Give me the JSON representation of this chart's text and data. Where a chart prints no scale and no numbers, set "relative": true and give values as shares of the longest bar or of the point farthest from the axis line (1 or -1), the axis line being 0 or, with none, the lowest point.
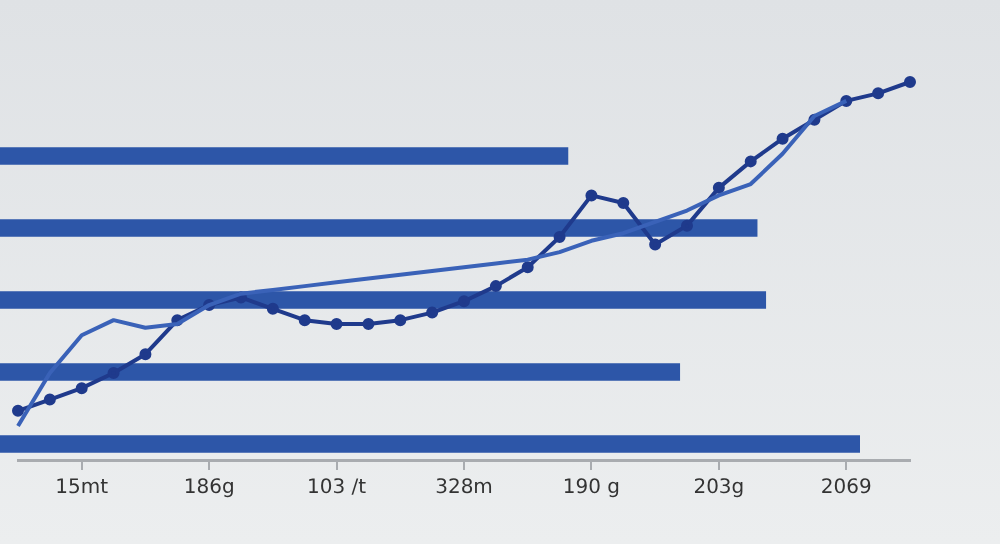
{
  "chart_data": [
    {
      "type": "bar",
      "orientation": "horizontal",
      "relative": true,
      "categories": [
        null,
        null,
        null,
        null,
        null
      ],
      "values": [
        0.66,
        0.88,
        0.89,
        0.79,
        1
      ],
      "color": "#2d56a8"
    },
    {
      "type": "line",
      "relative": true,
      "categories": [
        null,
        null,
        "15mt",
        null,
        null,
        null,
        "186g",
        null,
        null,
        null,
        "103 /t",
        null,
        null,
        null,
        "328m",
        null,
        null,
        null,
        "190 g",
        null,
        null,
        null,
        "203g",
        null,
        null,
        null,
        "2069",
        null,
        null
      ],
      "series": [
        {
          "color": "#3a62b8",
          "marker": "none",
          "values": [
            0.09,
            0.23,
            0.33,
            0.37,
            0.35,
            0.36,
            0.41,
            0.44,
            0.45,
            0.46,
            0.47,
            0.48,
            0.49,
            0.5,
            0.51,
            0.52,
            0.53,
            0.55,
            0.58,
            0.6,
            0.63,
            0.66,
            0.7,
            0.73,
            0.81,
            0.91,
            0.95,
            null,
            null
          ]
        },
        {
          "color": "#1f3a8c",
          "marker": "circle",
          "values": [
            0.13,
            0.16,
            0.19,
            0.23,
            0.28,
            0.37,
            0.41,
            0.43,
            0.4,
            0.37,
            0.36,
            0.36,
            0.37,
            0.39,
            0.42,
            0.46,
            0.51,
            0.59,
            0.7,
            0.68,
            0.57,
            0.62,
            0.72,
            0.79,
            0.85,
            0.9,
            0.95,
            0.97,
            1
          ]
        }
      ]
    }
  ]
}
